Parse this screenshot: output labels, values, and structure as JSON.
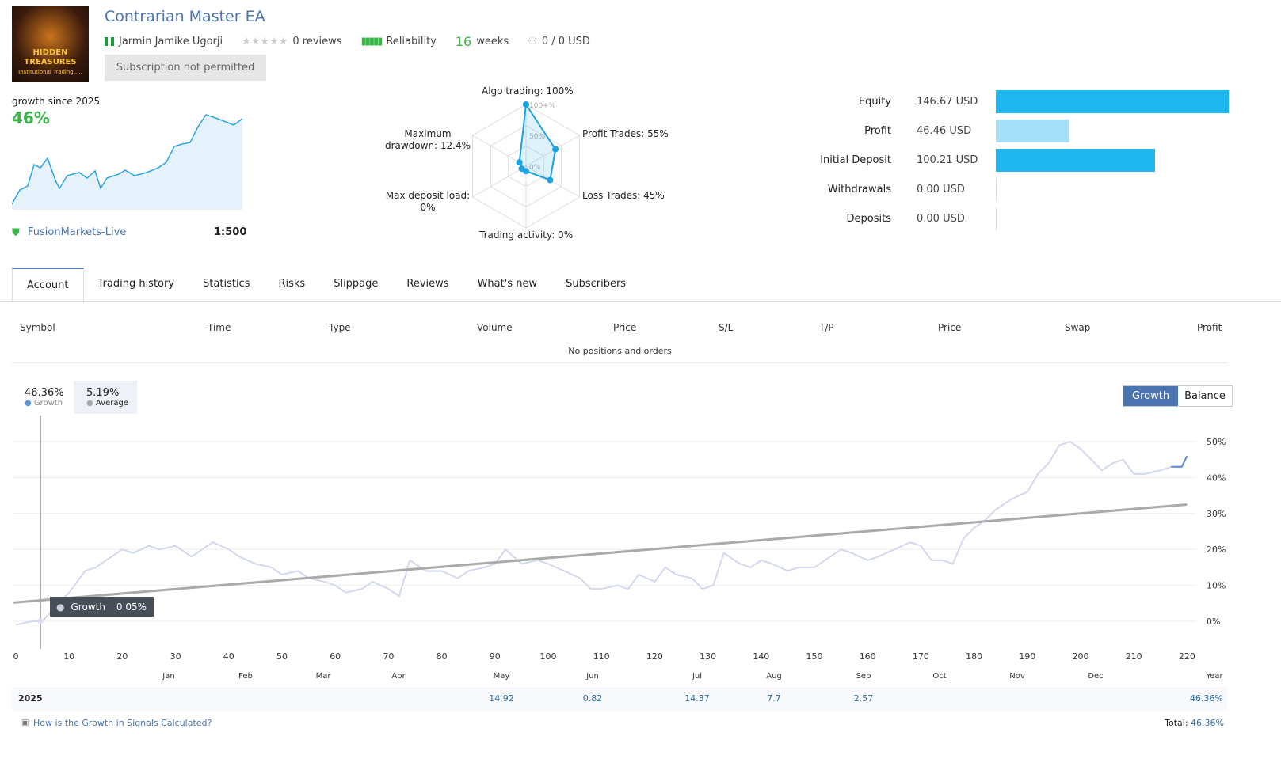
{
  "header": {
    "title": "Contrarian Master EA",
    "author": "Jarmin Jamike Ugorji",
    "reviews": "0 reviews",
    "reliability": "Reliability",
    "weeks_num": "16",
    "weeks_label": "weeks",
    "subscribers": "0 / 0 USD",
    "subscribe_button": "Subscription not permitted",
    "avatar_text1": "HIDDEN TREASURES",
    "avatar_text2": "Institutional Trading....."
  },
  "summary": {
    "growth_label": "growth since 2025",
    "growth_value": "46%",
    "broker": "FusionMarkets-Live",
    "leverage": "1:500"
  },
  "radar": {
    "labels": {
      "algo": "Algo trading: 100%",
      "profit": "Profit Trades: 55%",
      "loss": "Loss Trades: 45%",
      "activity": "Trading activity: 0%",
      "load1": "Max deposit load:",
      "load2": "0%",
      "dd1": "Maximum",
      "dd2": "drawdown: 12.4%"
    },
    "rings": [
      "100+%",
      "50%",
      "0%"
    ],
    "values": {
      "algo": 100,
      "profit": 55,
      "loss": 45,
      "activity": 0,
      "load": 0,
      "drawdown": 12.4
    }
  },
  "balance": [
    {
      "label": "Equity",
      "value": "146.67 USD",
      "amount": 146.67,
      "color": "#1fb6ef"
    },
    {
      "label": "Profit",
      "value": "46.46 USD",
      "amount": 46.46,
      "color": "#a6e0f8"
    },
    {
      "label": "Initial Deposit",
      "value": "100.21 USD",
      "amount": 100.21,
      "color": "#1fb6ef"
    },
    {
      "label": "Withdrawals",
      "value": "0.00 USD",
      "amount": 0,
      "color": "#1fb6ef"
    },
    {
      "label": "Deposits",
      "value": "0.00 USD",
      "amount": 0,
      "color": "#1fb6ef"
    }
  ],
  "tabs": [
    "Account",
    "Trading history",
    "Statistics",
    "Risks",
    "Slippage",
    "Reviews",
    "What's new",
    "Subscribers"
  ],
  "positions": {
    "columns": [
      "Symbol",
      "Time",
      "Type",
      "Volume",
      "Price",
      "S/L",
      "T/P",
      "Price",
      "Swap",
      "Profit"
    ],
    "empty": "No positions and orders"
  },
  "chart_data": {
    "type": "line",
    "legend": {
      "growth_value": "46.36%",
      "growth_label": "Growth",
      "avg_value": "5.19%",
      "avg_label": "Average"
    },
    "toggle": [
      "Growth",
      "Balance"
    ],
    "tooltip": {
      "label": "Growth",
      "value": "0.05%"
    },
    "yticks": [
      "0%",
      "10%",
      "20%",
      "30%",
      "40%",
      "50%"
    ],
    "ylim": [
      -3,
      55
    ],
    "xticks": [
      0,
      10,
      20,
      30,
      40,
      50,
      60,
      70,
      80,
      90,
      100,
      110,
      120,
      130,
      140,
      150,
      160,
      170,
      180,
      190,
      200,
      210,
      220
    ],
    "xlim": [
      0,
      222
    ],
    "months": [
      "Jan",
      "Feb",
      "Mar",
      "Apr",
      "May",
      "Jun",
      "Jul",
      "Aug",
      "Sep",
      "Oct",
      "Nov",
      "Dec",
      "Year"
    ],
    "growth": [
      [
        0,
        -1
      ],
      [
        3,
        0
      ],
      [
        5,
        0.05
      ],
      [
        8,
        5
      ],
      [
        10,
        8
      ],
      [
        13,
        14
      ],
      [
        15,
        15
      ],
      [
        18,
        18
      ],
      [
        20,
        20
      ],
      [
        22,
        19
      ],
      [
        25,
        21
      ],
      [
        27,
        20
      ],
      [
        30,
        21
      ],
      [
        33,
        18
      ],
      [
        35,
        20
      ],
      [
        37,
        22
      ],
      [
        40,
        20
      ],
      [
        42,
        18
      ],
      [
        45,
        16
      ],
      [
        48,
        15
      ],
      [
        50,
        13
      ],
      [
        53,
        14
      ],
      [
        55,
        12
      ],
      [
        58,
        11
      ],
      [
        60,
        10
      ],
      [
        62,
        8
      ],
      [
        65,
        9
      ],
      [
        67,
        11
      ],
      [
        70,
        9
      ],
      [
        72,
        7
      ],
      [
        74,
        17
      ],
      [
        77,
        14
      ],
      [
        80,
        14
      ],
      [
        83,
        12
      ],
      [
        85,
        14
      ],
      [
        88,
        15
      ],
      [
        90,
        16
      ],
      [
        92,
        20
      ],
      [
        95,
        16
      ],
      [
        98,
        17
      ],
      [
        100,
        16
      ],
      [
        103,
        14
      ],
      [
        106,
        12
      ],
      [
        108,
        9
      ],
      [
        110,
        9
      ],
      [
        113,
        10
      ],
      [
        115,
        9
      ],
      [
        117,
        13
      ],
      [
        120,
        11
      ],
      [
        122,
        15
      ],
      [
        124,
        13
      ],
      [
        127,
        12
      ],
      [
        129,
        9
      ],
      [
        131,
        10
      ],
      [
        133,
        19
      ],
      [
        136,
        16
      ],
      [
        138,
        15
      ],
      [
        140,
        17
      ],
      [
        142,
        16
      ],
      [
        145,
        14
      ],
      [
        147,
        15
      ],
      [
        150,
        15
      ],
      [
        153,
        18
      ],
      [
        155,
        20
      ],
      [
        157,
        19
      ],
      [
        160,
        17
      ],
      [
        162,
        18
      ],
      [
        165,
        20
      ],
      [
        168,
        22
      ],
      [
        170,
        21
      ],
      [
        172,
        17
      ],
      [
        174,
        17
      ],
      [
        176,
        16
      ],
      [
        178,
        23
      ],
      [
        180,
        26
      ],
      [
        182,
        28
      ],
      [
        184,
        31
      ],
      [
        187,
        34
      ],
      [
        190,
        36
      ],
      [
        192,
        41
      ],
      [
        194,
        44
      ],
      [
        196,
        49
      ],
      [
        198,
        50
      ],
      [
        200,
        48
      ],
      [
        202,
        45
      ],
      [
        204,
        42
      ],
      [
        206,
        44
      ],
      [
        208,
        45
      ],
      [
        210,
        41
      ],
      [
        212,
        41
      ],
      [
        215,
        42
      ],
      [
        217,
        43
      ],
      [
        219,
        43
      ],
      [
        220,
        46
      ]
    ],
    "average": [
      [
        0,
        5.2
      ],
      [
        220,
        32.5
      ]
    ]
  },
  "yearrow": {
    "year": "2025",
    "values": [
      "",
      "",
      "",
      "",
      "14.92",
      "0.82",
      "14.37",
      "7.7",
      "2.57",
      "",
      "",
      "",
      ""
    ],
    "total_year": "46.36%"
  },
  "footer": {
    "link": "How is the Growth in Signals Calculated?",
    "total_label": "Total:",
    "total_value": "46.36%"
  }
}
